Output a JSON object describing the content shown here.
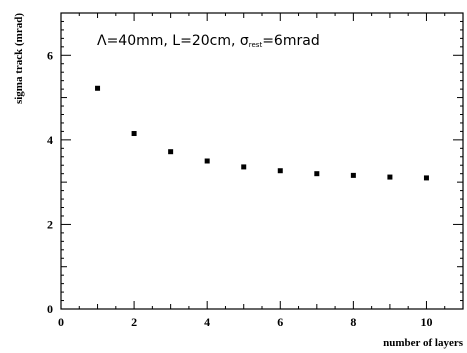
{
  "chart_data": {
    "type": "scatter",
    "title": "",
    "xlabel": "number of layers",
    "ylabel": "sigma track  (mrad)",
    "xlim": [
      0,
      11
    ],
    "ylim": [
      0,
      7
    ],
    "xticks": [
      "0",
      "2",
      "4",
      "6",
      "8",
      "10"
    ],
    "yticks": [
      "0",
      "2",
      "4",
      "6"
    ],
    "grid": false,
    "annotation": {
      "prefix": "Λ=40mm, L=20cm, σ",
      "subscript": "rest",
      "suffix": "=6mrad"
    },
    "series": [
      {
        "x": [
          1,
          2,
          3,
          4,
          5,
          6,
          7,
          8,
          9,
          10
        ],
        "y": [
          5.22,
          4.15,
          3.72,
          3.5,
          3.36,
          3.27,
          3.2,
          3.16,
          3.12,
          3.1
        ]
      }
    ],
    "colors": {
      "marker": "#000000",
      "axis": "#000000"
    }
  }
}
